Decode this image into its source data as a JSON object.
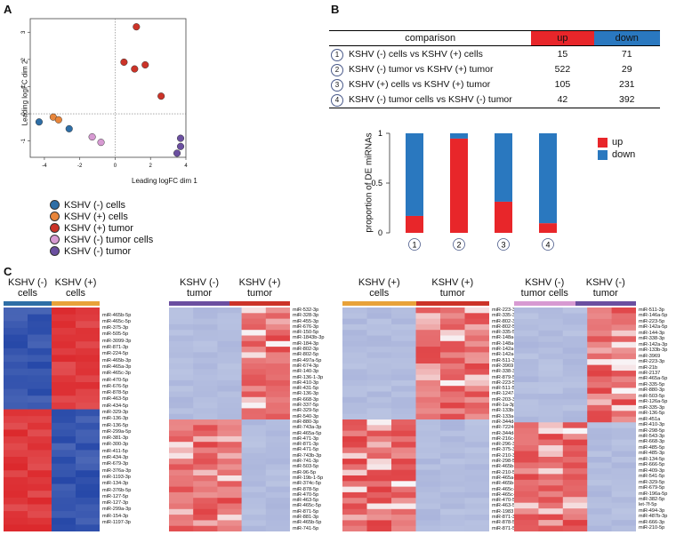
{
  "panels": {
    "a": "A",
    "b": "B",
    "c": "C"
  },
  "mds": {
    "xlabel": "Leading logFC dim 1",
    "ylabel": "Leading logFC dim 2",
    "xticks": [
      "-4",
      "-2",
      "0",
      "2",
      "4"
    ],
    "yticks": [
      "3",
      "2",
      "1",
      "0",
      "-1"
    ],
    "legend": [
      {
        "label": "KSHV (-) cells",
        "color": "#2e6ea6"
      },
      {
        "label": "KSHV (+) cells",
        "color": "#e8853a"
      },
      {
        "label": "KSHV (+) tumor",
        "color": "#cc3328"
      },
      {
        "label": "KSHV (-) tumor cells",
        "color": "#d79ad2"
      },
      {
        "label": "KSHV (-) tumor",
        "color": "#6b4fa0"
      }
    ]
  },
  "chart_data": [
    {
      "type": "scatter",
      "title": "",
      "xlabel": "Leading logFC dim 1",
      "ylabel": "Leading logFC dim 2",
      "xlim": [
        -4.8,
        4.0
      ],
      "ylim": [
        -1.6,
        3.5
      ],
      "series": [
        {
          "name": "KSHV (-) cells",
          "color": "#2e6ea6",
          "points": [
            [
              -4.3,
              -0.3
            ],
            [
              -2.6,
              -0.55
            ]
          ]
        },
        {
          "name": "KSHV (+) cells",
          "color": "#e8853a",
          "points": [
            [
              -3.5,
              -0.12
            ],
            [
              -3.2,
              -0.22
            ]
          ]
        },
        {
          "name": "KSHV (+) tumor",
          "color": "#cc3328",
          "points": [
            [
              1.2,
              3.2
            ],
            [
              0.5,
              1.9
            ],
            [
              1.1,
              1.65
            ],
            [
              1.7,
              1.8
            ],
            [
              2.6,
              0.65
            ]
          ]
        },
        {
          "name": "KSHV (-) tumor cells",
          "color": "#d79ad2",
          "points": [
            [
              -1.3,
              -0.85
            ],
            [
              -0.8,
              -1.05
            ]
          ]
        },
        {
          "name": "KSHV (-) tumor",
          "color": "#6b4fa0",
          "points": [
            [
              3.7,
              -0.9
            ],
            [
              3.7,
              -1.2
            ],
            [
              3.5,
              -1.45
            ]
          ]
        }
      ]
    },
    {
      "type": "bar",
      "title": "",
      "xlabel": "",
      "ylabel": "proportion of DE miRNAs",
      "ylim": [
        0,
        1
      ],
      "categories": [
        "1",
        "2",
        "3",
        "4"
      ],
      "series": [
        {
          "name": "up",
          "color": "#e8262a",
          "values": [
            0.17,
            0.947,
            0.313,
            0.097
          ]
        },
        {
          "name": "down",
          "color": "#2a78bf",
          "values": [
            0.83,
            0.053,
            0.687,
            0.903
          ]
        }
      ],
      "yticks": [
        "0",
        "0.5",
        "1"
      ],
      "legend": [
        "up",
        "down"
      ]
    }
  ],
  "comparison_table": {
    "headers": [
      "comparison",
      "up",
      "down"
    ],
    "header_colors": {
      "up": "#e8262a",
      "down": "#2a78bf"
    },
    "rows": [
      {
        "num": "1",
        "text": "KSHV (-) cells vs KSHV (+) cells",
        "up": "15",
        "down": "71"
      },
      {
        "num": "2",
        "text": "KSHV (-) tumor vs KSHV (+) tumor",
        "up": "522",
        "down": "29"
      },
      {
        "num": "3",
        "text": "KSHV (+) cells vs KSHV (+) tumor",
        "up": "105",
        "down": "231"
      },
      {
        "num": "4",
        "text": "KSHV (-) tumor cells vs KSHV (-) tumor",
        "up": "42",
        "down": "392"
      }
    ]
  },
  "bar_legend": [
    {
      "label": "up",
      "color": "#e8262a"
    },
    {
      "label": "down",
      "color": "#2a78bf"
    }
  ],
  "heatmaps": [
    {
      "group1": "KSHV (-)\ncells",
      "group2": "KSHV (+)\ncells",
      "color1": "#2e6ea6",
      "color2": "#e8a23a",
      "mirnas": [
        "miR-465b-5p",
        "miR-465c-5p",
        "miR-375-3p",
        "miR-505-5p",
        "miR-3099-3p",
        "miR-871-3p",
        "miR-224-5p",
        "miR-465b-3p",
        "miR-465a-3p",
        "miR-465c-3p",
        "miR-470-5p",
        "miR-676-5p",
        "miR-878-5p",
        "miR-463-5p",
        "miR-434-5p",
        "miR-329-3p",
        "miR-136-3p",
        "miR-136-5p",
        "miR-299a-5p",
        "miR-381-3p",
        "miR-300-3p",
        "miR-411-5p",
        "miR-434-3p",
        "miR-679-3p",
        "miR-376a-3p",
        "miR-1193-3p",
        "miR-134-3p",
        "miR-376b-5p",
        "miR-127-5p",
        "miR-127-3p",
        "miR-299a-3p",
        "miR-154-3p",
        "miR-1197-3p"
      ]
    },
    {
      "group1": "KSHV (-)\ntumor",
      "group2": "KSHV (+)\ntumor",
      "color1": "#6b4fa0",
      "color2": "#cc3328",
      "mirnas": [
        "miR-532-3p",
        "miR-328-3p",
        "miR-455-3p",
        "miR-676-3p",
        "miR-150-5p",
        "miR-1843b-3p",
        "miR-184-3p",
        "miR-802-3p",
        "miR-802-5p",
        "miR-497a-5p",
        "miR-674-3p",
        "miR-140-3p",
        "miR-136-1-3p",
        "miR-410-3p",
        "miR-431-5p",
        "miR-136-3p",
        "miR-668-3p",
        "miR-337-5p",
        "miR-329-5p",
        "miR-540-3p",
        "miR-880-3p",
        "miR-743a-3p",
        "miR-465a-5p",
        "miR-471-3p",
        "miR-871-3p",
        "miR-471-5p",
        "miR-743b-3p",
        "miR-741-3p",
        "miR-503-5p",
        "miR-96-5p",
        "miR-19b-1-5p",
        "miR-374c-5p",
        "miR-878-5p",
        "miR-470-5p",
        "miR-463-5p",
        "miR-465c-5p",
        "miR-871-5p",
        "miR-881-3p",
        "miR-465b-5p",
        "miR-741-5p"
      ]
    },
    {
      "group1": "KSHV (+)\ncells",
      "group2": "KSHV (+)\ntumor",
      "color1": "#e8a23a",
      "color2": "#cc3328",
      "mirnas": [
        "miR-223-3p",
        "miR-335-3p",
        "miR-802-3p",
        "miR-802-5p",
        "miR-335-5p",
        "miR-148a-3p",
        "miR-148a-5p",
        "miR-142a-5p",
        "miR-142a-3p",
        "miR-511-3p",
        "miR-3969",
        "miR-338-3p",
        "miR-879-5p",
        "miR-223-5p",
        "miR-511-5p",
        "miR-1247-5p",
        "miR-203-3p",
        "miR-1a-3p",
        "miR-133b-3p",
        "miR-133a-3p",
        "miR-344d-3p",
        "miR-7224-3p",
        "miR-344d-3-5p",
        "miR-216c-5p",
        "miR-296-3p",
        "miR-375-3p",
        "miR-210-3p",
        "miR-298-5p",
        "miR-465b-5p",
        "miR-210-5p",
        "miR-465a-3p",
        "miR-465b-3p",
        "miR-465c-3p",
        "miR-465c-5p",
        "miR-470-5p",
        "miR-463-5p",
        "miR-1983",
        "miR-871-3p",
        "miR-878-5p",
        "miR-871-5p"
      ]
    },
    {
      "group1": "KSHV (-)\ntumor cells",
      "group2": "KSHV (-)\ntumor",
      "color1": "#d79ad2",
      "color2": "#6b4fa0",
      "mirnas": [
        "miR-511-3p",
        "miR-146a-5p",
        "miR-223-5p",
        "miR-142a-5p",
        "miR-144-3p",
        "miR-338-3p",
        "miR-142a-3p",
        "miR-133b-3p",
        "miR-3969",
        "miR-223-3p",
        "miR-21b",
        "miR-2137",
        "miR-465a-5p",
        "miR-335-5p",
        "miR-880-3p",
        "miR-503-5p",
        "miR-126a-5p",
        "miR-335-3p",
        "miR-136-5p",
        "miR-451a",
        "miR-410-3p",
        "miR-298-5p",
        "miR-543-3p",
        "miR-668-3p",
        "miR-485-5p",
        "miR-485-3p",
        "miR-134-5p",
        "miR-666-5p",
        "miR-409-3p",
        "miR-541-5p",
        "miR-329-5p",
        "miR-679-5p",
        "miR-196a-5p",
        "miR-382-5p",
        "let-7f-5p",
        "miR-494-3p",
        "miR-487b-3p",
        "miR-666-3p",
        "miR-210-5p"
      ]
    }
  ]
}
